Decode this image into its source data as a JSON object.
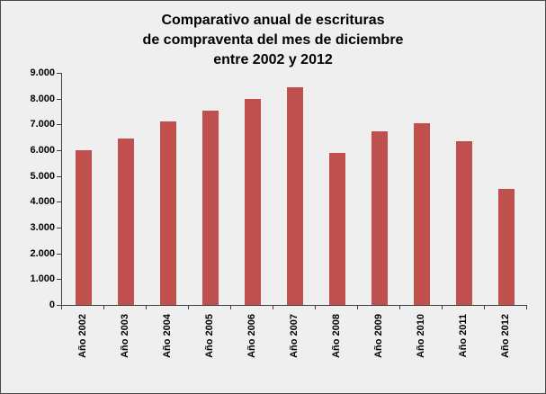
{
  "chart_data": {
    "type": "bar",
    "title": "Comparativo anual de escrituras de compraventa del mes de diciembre entre 2002 y 2012",
    "title_lines": [
      "Comparativo anual de escrituras",
      "de compraventa del mes de diciembre",
      "entre 2002 y 2012"
    ],
    "categories": [
      "Año 2002",
      "Año 2003",
      "Año 2004",
      "Año 2005",
      "Año 2006",
      "Año 2007",
      "Año 2008",
      "Año 2009",
      "Año 2010",
      "Año 2011",
      "Año 2012"
    ],
    "values": [
      6000,
      6450,
      7100,
      7550,
      8000,
      8450,
      5900,
      6750,
      7050,
      6350,
      4500
    ],
    "xlabel": "",
    "ylabel": "",
    "ylim": [
      0,
      9000
    ],
    "ytick_step": 1000,
    "ytick_labels": [
      "0",
      "1.000",
      "2.000",
      "3.000",
      "4.000",
      "5.000",
      "6.000",
      "7.000",
      "8.000",
      "9.000"
    ],
    "grid": false,
    "legend": "none",
    "bar_color": "#C0504D",
    "background_color": "#F0EFEF",
    "axis_color": "#3f3f3f",
    "text_color": "#000000"
  }
}
